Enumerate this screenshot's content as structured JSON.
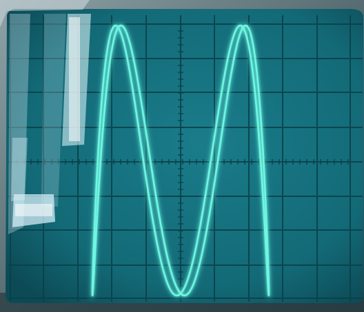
{
  "scene": {
    "subject": "oscilloscope-screen",
    "trace_pattern": "lissajous-figure",
    "colors": {
      "bezel": "#5e7378",
      "screen": "#16707e",
      "screen_edge": "#0d4c57",
      "graticule": "#0a3f49",
      "trace": "#5ff1dc",
      "reflection": "#dff6ff"
    }
  }
}
